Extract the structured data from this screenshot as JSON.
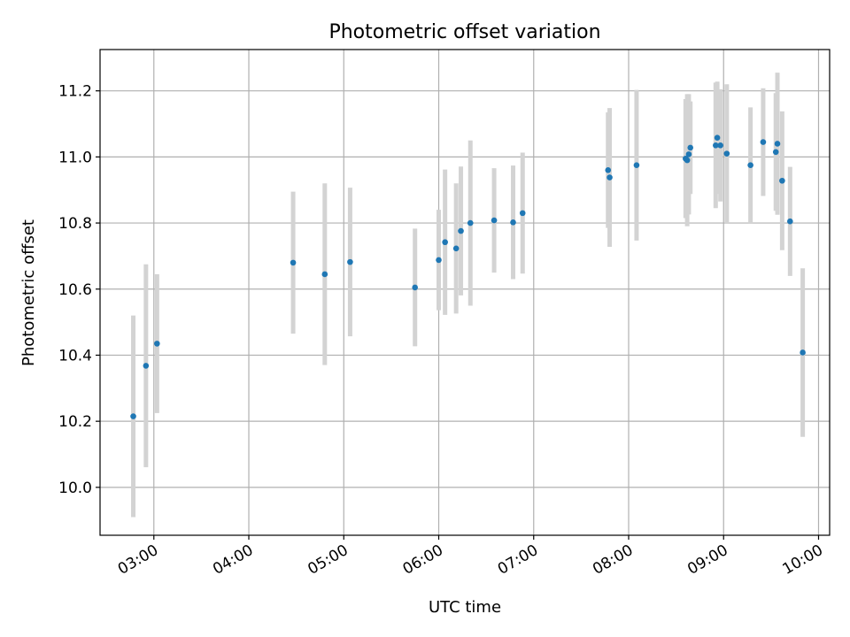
{
  "chart_data": {
    "type": "scatter",
    "title": "Photometric offset variation",
    "xlabel": "UTC time",
    "ylabel": "Photometric offset",
    "x_axis_type": "time",
    "xlim": [
      "02:26",
      "10:07"
    ],
    "ylim": [
      9.855,
      11.325
    ],
    "x_ticks": [
      "03:00",
      "04:00",
      "05:00",
      "06:00",
      "07:00",
      "08:00",
      "09:00",
      "10:00"
    ],
    "y_ticks": [
      10.0,
      10.2,
      10.4,
      10.6,
      10.8,
      11.0,
      11.2
    ],
    "y_tick_labels": [
      "10.0",
      "10.2",
      "10.4",
      "10.6",
      "10.8",
      "11.0",
      "11.2"
    ],
    "grid": true,
    "legend": "none",
    "colors": {
      "points": "#1f77b4",
      "error_bars": "#d3d3d3",
      "grid": "#b0b0b0"
    },
    "series": [
      {
        "points": [
          {
            "x": "02:47",
            "y": 10.215,
            "err": 0.305
          },
          {
            "x": "02:55",
            "y": 10.368,
            "err": 0.307
          },
          {
            "x": "03:02",
            "y": 10.435,
            "err": 0.21
          },
          {
            "x": "04:28",
            "y": 10.68,
            "err": 0.215
          },
          {
            "x": "04:48",
            "y": 10.645,
            "err": 0.275
          },
          {
            "x": "05:04",
            "y": 10.682,
            "err": 0.225
          },
          {
            "x": "05:45",
            "y": 10.605,
            "err": 0.178
          },
          {
            "x": "06:00",
            "y": 10.688,
            "err": 0.152
          },
          {
            "x": "06:04",
            "y": 10.742,
            "err": 0.22
          },
          {
            "x": "06:11",
            "y": 10.723,
            "err": 0.197
          },
          {
            "x": "06:14",
            "y": 10.776,
            "err": 0.195
          },
          {
            "x": "06:20",
            "y": 10.8,
            "err": 0.25
          },
          {
            "x": "06:35",
            "y": 10.808,
            "err": 0.158
          },
          {
            "x": "06:47",
            "y": 10.802,
            "err": 0.172
          },
          {
            "x": "06:53",
            "y": 10.83,
            "err": 0.183
          },
          {
            "x": "07:47",
            "y": 10.96,
            "err": 0.175
          },
          {
            "x": "07:48",
            "y": 10.938,
            "err": 0.21
          },
          {
            "x": "08:05",
            "y": 10.975,
            "err": 0.228
          },
          {
            "x": "08:36",
            "y": 10.995,
            "err": 0.18
          },
          {
            "x": "08:37",
            "y": 10.99,
            "err": 0.2
          },
          {
            "x": "08:38",
            "y": 11.008,
            "err": 0.182
          },
          {
            "x": "08:39",
            "y": 11.028,
            "err": 0.14
          },
          {
            "x": "08:55",
            "y": 11.035,
            "err": 0.19
          },
          {
            "x": "08:56",
            "y": 11.058,
            "err": 0.17
          },
          {
            "x": "08:58",
            "y": 11.035,
            "err": 0.17
          },
          {
            "x": "09:02",
            "y": 11.01,
            "err": 0.21
          },
          {
            "x": "09:17",
            "y": 10.975,
            "err": 0.175
          },
          {
            "x": "09:25",
            "y": 11.045,
            "err": 0.163
          },
          {
            "x": "09:33",
            "y": 11.015,
            "err": 0.178
          },
          {
            "x": "09:34",
            "y": 11.04,
            "err": 0.215
          },
          {
            "x": "09:37",
            "y": 10.928,
            "err": 0.21
          },
          {
            "x": "09:42",
            "y": 10.805,
            "err": 0.165
          },
          {
            "x": "09:50",
            "y": 10.408,
            "err": 0.255
          }
        ]
      }
    ]
  }
}
